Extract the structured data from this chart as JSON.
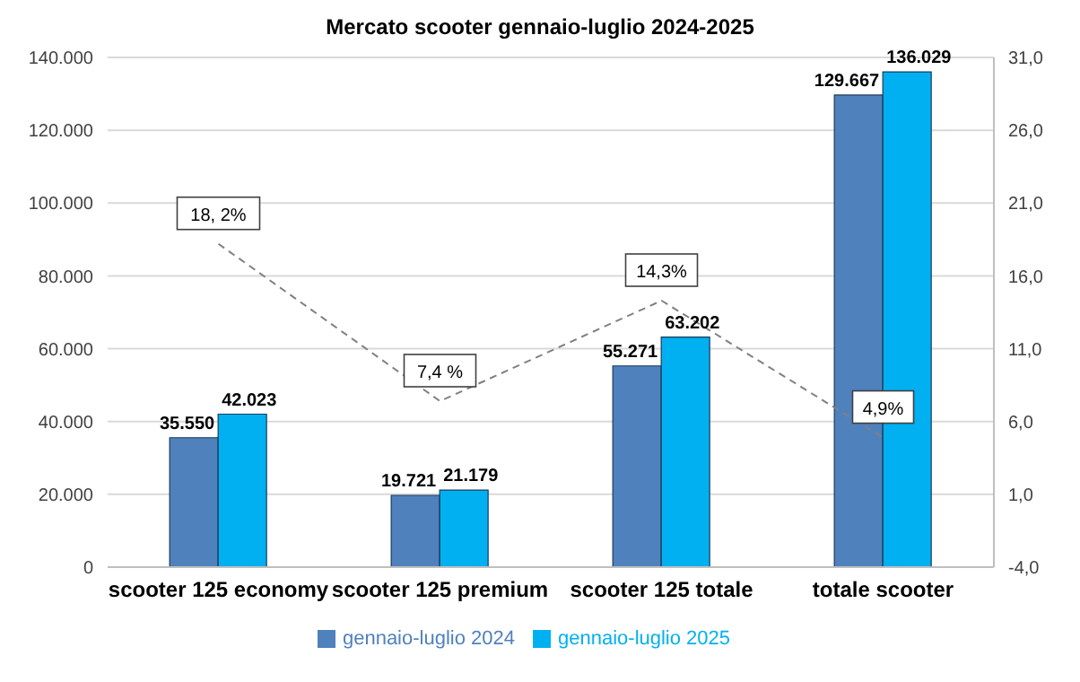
{
  "chart_data": {
    "type": "bar",
    "title": "Mercato scooter gennaio-luglio 2024-2025",
    "categories": [
      "scooter 125 economy",
      "scooter 125 premium",
      "scooter 125 totale",
      "totale scooter"
    ],
    "series": [
      {
        "name": "gennaio-luglio 2024",
        "color": "#4f81bd",
        "values": [
          35550,
          19721,
          55271,
          129667
        ],
        "value_labels": [
          "35.550",
          "19.721",
          "55.271",
          "129.667"
        ]
      },
      {
        "name": "gennaio-luglio 2025",
        "color": "#00b0f0",
        "values": [
          42023,
          21179,
          63202,
          136029
        ],
        "value_labels": [
          "42.023",
          "21.179",
          "63.202",
          "136.029"
        ]
      },
      {
        "type": "line",
        "axis": "y2",
        "color": "#808080",
        "line_style": "dashed",
        "marker": "none",
        "values": [
          18.2,
          7.4,
          14.3,
          4.9
        ],
        "value_labels": [
          "18, 2%",
          "7,4 %",
          "14,3%",
          "4,9%"
        ]
      }
    ],
    "ylim": [
      0,
      140000
    ],
    "yticks": [
      0,
      {
        "value": 20000,
        "label": "20.000"
      },
      {
        "value": 40000,
        "label": "40.000"
      },
      {
        "value": 60000,
        "label": "60.000"
      },
      {
        "value": 80000,
        "label": "80.000"
      },
      {
        "value": 100000,
        "label": "100.000"
      },
      {
        "value": 120000,
        "label": "120.000"
      },
      {
        "value": 140000,
        "label": "140.000"
      }
    ],
    "y2lim": [
      -4,
      31
    ],
    "y2ticks": [
      {
        "value": -4,
        "label": "-4,0"
      },
      {
        "value": 1,
        "label": "1,0"
      },
      {
        "value": 6,
        "label": "6,0"
      },
      {
        "value": 11,
        "label": "11,0"
      },
      {
        "value": 16,
        "label": "16,0"
      },
      {
        "value": 21,
        "label": "21,0"
      },
      {
        "value": 26,
        "label": "26,0"
      },
      {
        "value": 31,
        "label": "31,0"
      }
    ],
    "grid": "y",
    "legend": "bottom"
  }
}
